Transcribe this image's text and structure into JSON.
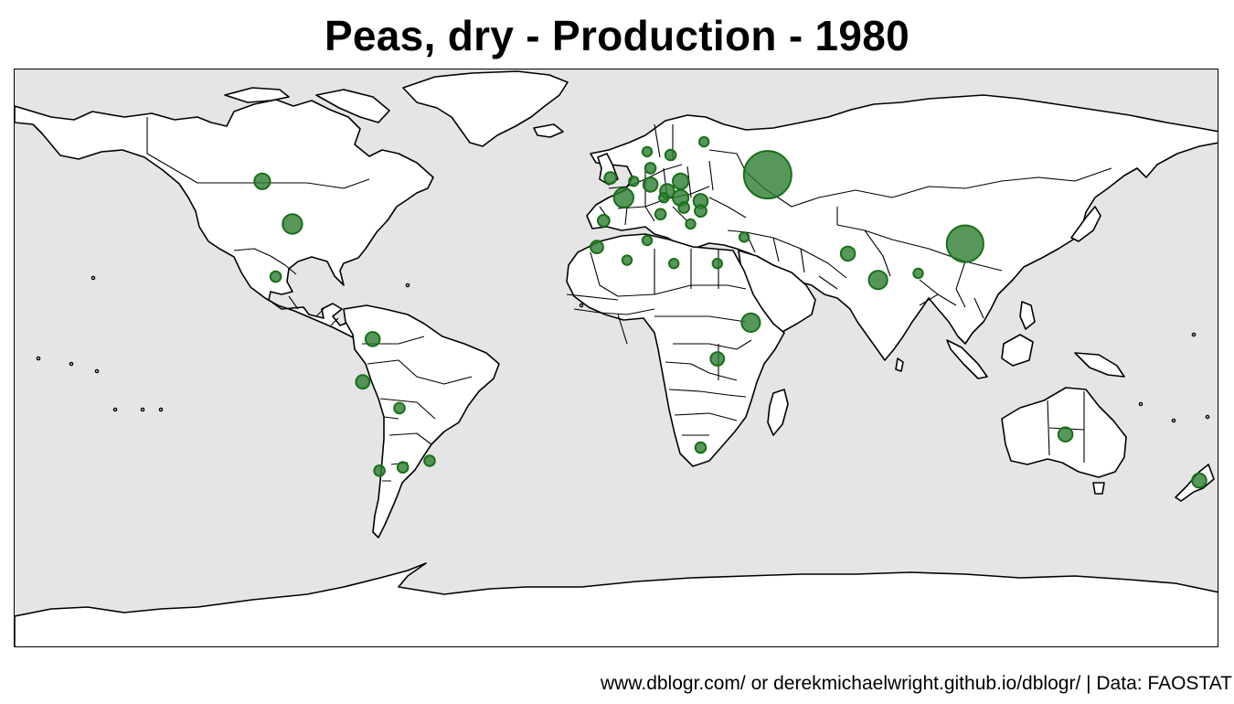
{
  "title": "Peas, dry - Production - 1980",
  "caption": "www.dblogr.com/ or derekmichaelwright.github.io/dblogr/ | Data: FAOSTAT",
  "colors": {
    "ocean": "#e5e5e5",
    "land": "#ffffff",
    "outline": "#000000",
    "bubble": "#2e7d32"
  },
  "chart_data": {
    "type": "bubble-map",
    "metric": "Peas, dry - Production",
    "year": 1980,
    "size_legend": "none",
    "points": [
      {
        "place": "USSR",
        "lon": 45,
        "lat": 54,
        "relative_size": 1.0
      },
      {
        "place": "China",
        "lon": 104,
        "lat": 33,
        "relative_size": 0.6
      },
      {
        "place": "USA",
        "lon": -97,
        "lat": 39,
        "relative_size": 0.17
      },
      {
        "place": "France",
        "lon": 2,
        "lat": 47,
        "relative_size": 0.17
      },
      {
        "place": "Ethiopia",
        "lon": 40,
        "lat": 9,
        "relative_size": 0.15
      },
      {
        "place": "India",
        "lon": 78,
        "lat": 22,
        "relative_size": 0.15
      },
      {
        "place": "Canada",
        "lon": -106,
        "lat": 52,
        "relative_size": 0.11
      },
      {
        "place": "Poland",
        "lon": 19,
        "lat": 52,
        "relative_size": 0.11
      },
      {
        "place": "Hungary",
        "lon": 19,
        "lat": 47,
        "relative_size": 0.11
      },
      {
        "place": "Czechoslovakia",
        "lon": 15,
        "lat": 49,
        "relative_size": 0.09
      },
      {
        "place": "Romania",
        "lon": 25,
        "lat": 46,
        "relative_size": 0.09
      },
      {
        "place": "Germany",
        "lon": 10,
        "lat": 51,
        "relative_size": 0.09
      },
      {
        "place": "Pakistan",
        "lon": 69,
        "lat": 30,
        "relative_size": 0.09
      },
      {
        "place": "Australia",
        "lon": 134,
        "lat": -25,
        "relative_size": 0.09
      },
      {
        "place": "New Zealand",
        "lon": 174,
        "lat": -39,
        "relative_size": 0.09
      },
      {
        "place": "Colombia",
        "lon": -73,
        "lat": 4,
        "relative_size": 0.09
      },
      {
        "place": "Peru",
        "lon": -76,
        "lat": -9,
        "relative_size": 0.08
      },
      {
        "place": "Burundi/Rwanda",
        "lon": 30,
        "lat": -2,
        "relative_size": 0.08
      },
      {
        "place": "Morocco",
        "lon": -6,
        "lat": 32,
        "relative_size": 0.07
      },
      {
        "place": "Spain",
        "lon": -4,
        "lat": 40,
        "relative_size": 0.06
      },
      {
        "place": "United Kingdom",
        "lon": -2,
        "lat": 53,
        "relative_size": 0.06
      },
      {
        "place": "Denmark",
        "lon": 10,
        "lat": 56,
        "relative_size": 0.05
      },
      {
        "place": "Sweden",
        "lon": 16,
        "lat": 60,
        "relative_size": 0.05
      },
      {
        "place": "Bulgaria",
        "lon": 25,
        "lat": 43,
        "relative_size": 0.06
      },
      {
        "place": "Yugoslavia",
        "lon": 20,
        "lat": 44,
        "relative_size": 0.05
      },
      {
        "place": "Italy",
        "lon": 13,
        "lat": 42,
        "relative_size": 0.05
      },
      {
        "place": "Mexico",
        "lon": -102,
        "lat": 23,
        "relative_size": 0.05
      },
      {
        "place": "Bolivia",
        "lon": -65,
        "lat": -17,
        "relative_size": 0.05
      },
      {
        "place": "Argentina",
        "lon": -64,
        "lat": -35,
        "relative_size": 0.05
      },
      {
        "place": "Chile",
        "lon": -71,
        "lat": -36,
        "relative_size": 0.05
      },
      {
        "place": "Uruguay",
        "lon": -56,
        "lat": -33,
        "relative_size": 0.05
      },
      {
        "place": "South Africa",
        "lon": 25,
        "lat": -29,
        "relative_size": 0.05
      },
      {
        "place": "Egypt",
        "lon": 30,
        "lat": 27,
        "relative_size": 0.04
      },
      {
        "place": "Algeria",
        "lon": 3,
        "lat": 28,
        "relative_size": 0.04
      },
      {
        "place": "Libya",
        "lon": 17,
        "lat": 27,
        "relative_size": 0.04
      },
      {
        "place": "Syria",
        "lon": 38,
        "lat": 35,
        "relative_size": 0.04
      },
      {
        "place": "Bangladesh",
        "lon": 90,
        "lat": 24,
        "relative_size": 0.04
      },
      {
        "place": "Finland",
        "lon": 26,
        "lat": 64,
        "relative_size": 0.04
      },
      {
        "place": "Norway",
        "lon": 9,
        "lat": 61,
        "relative_size": 0.04
      },
      {
        "place": "Netherlands",
        "lon": 5,
        "lat": 52,
        "relative_size": 0.04
      },
      {
        "place": "Greece",
        "lon": 22,
        "lat": 39,
        "relative_size": 0.04
      },
      {
        "place": "Austria",
        "lon": 14,
        "lat": 47,
        "relative_size": 0.04
      },
      {
        "place": "Tunisia",
        "lon": 9,
        "lat": 34,
        "relative_size": 0.04
      }
    ]
  }
}
